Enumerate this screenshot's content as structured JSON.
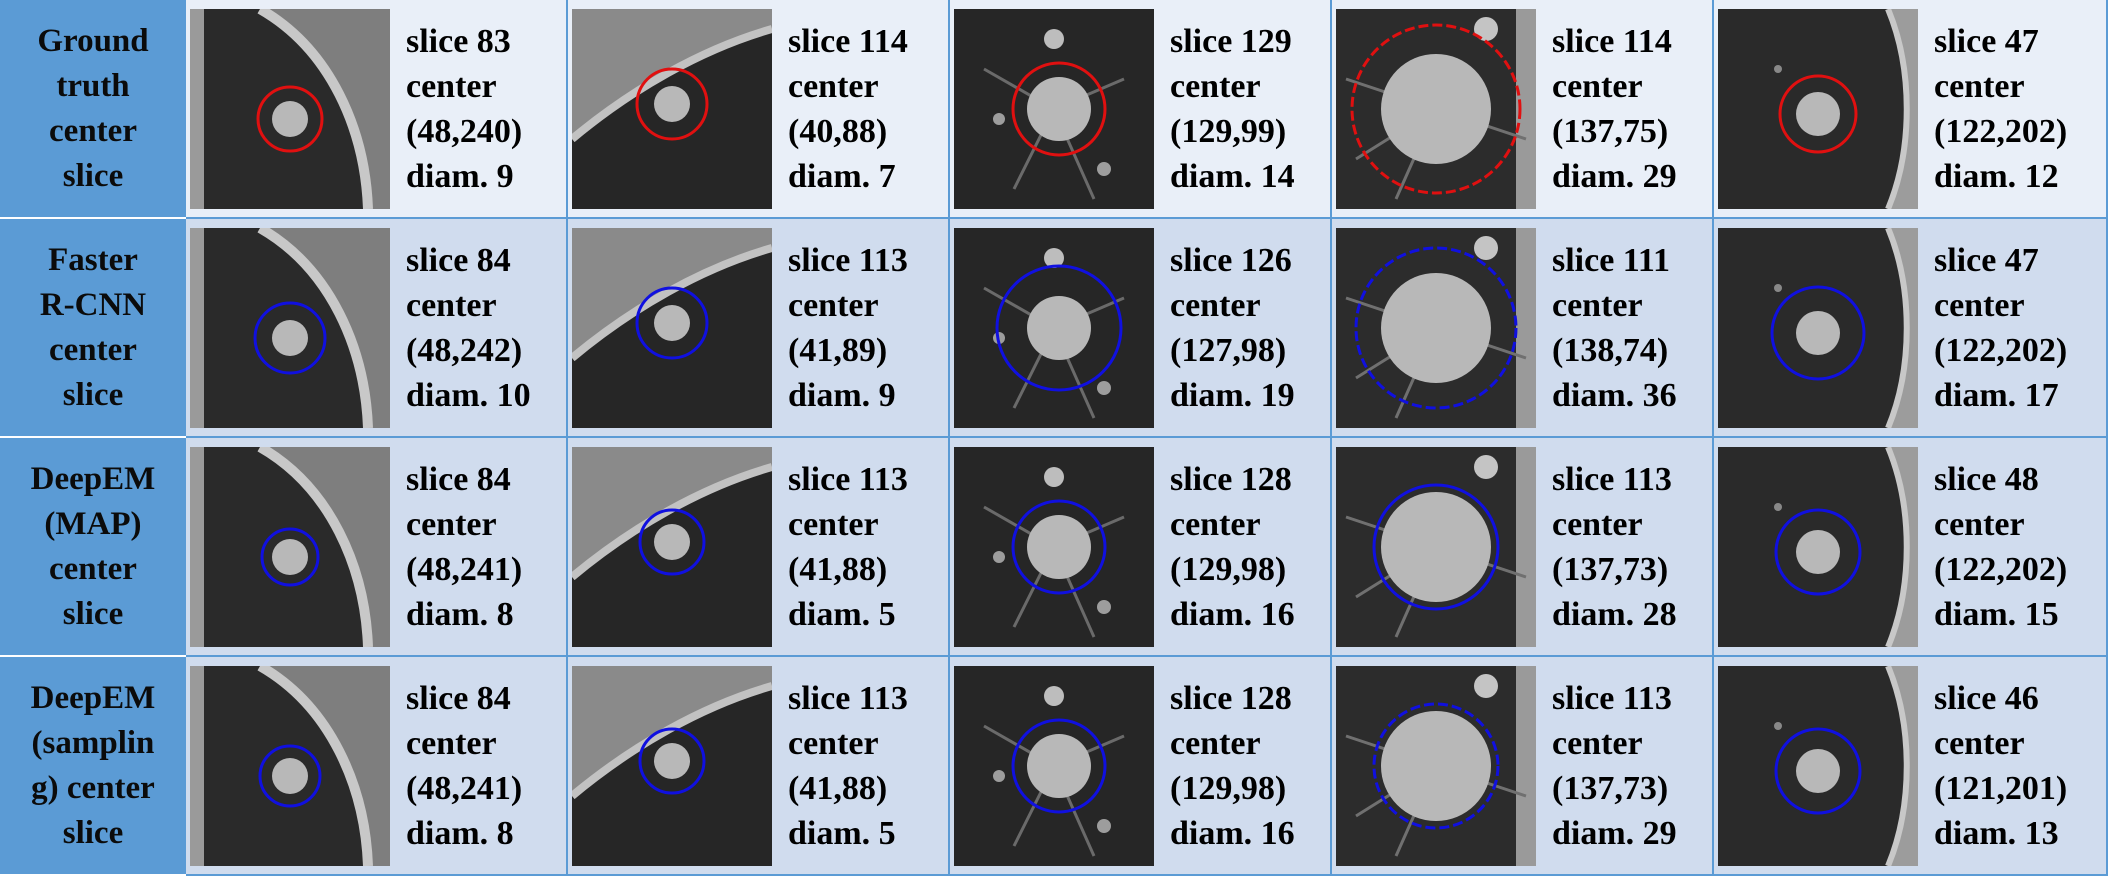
{
  "rows": [
    {
      "label": "Ground\ntruth\ncenter\nslice",
      "circle_color": "#e01010",
      "circle_style": "solid",
      "cells": [
        {
          "slice": "slice 83",
          "center_label": "center",
          "center": "(48,240)",
          "diam": "diam. 9"
        },
        {
          "slice": "slice 114",
          "center_label": "center",
          "center": "(40,88)",
          "diam": "diam. 7"
        },
        {
          "slice": "slice 129",
          "center_label": "center",
          "center": "(129,99)",
          "diam": "diam. 14"
        },
        {
          "slice": "slice 114",
          "center_label": "center",
          "center": "(137,75)",
          "diam": "diam. 29"
        },
        {
          "slice": "slice 47",
          "center_label": "center",
          "center": "(122,202)",
          "diam": "diam. 12"
        }
      ]
    },
    {
      "label": "Faster\nR-CNN\ncenter\nslice",
      "circle_color": "#1010e0",
      "circle_style": "solid",
      "cells": [
        {
          "slice": "slice 84",
          "center_label": "center",
          "center": "(48,242)",
          "diam": "diam. 10"
        },
        {
          "slice": "slice 113",
          "center_label": "center",
          "center": "(41,89)",
          "diam": "diam. 9"
        },
        {
          "slice": "slice 126",
          "center_label": "center",
          "center": "(127,98)",
          "diam": "diam. 19"
        },
        {
          "slice": "slice 111",
          "center_label": "center",
          "center": "(138,74)",
          "diam": "diam. 36"
        },
        {
          "slice": "slice 47",
          "center_label": "center",
          "center": "(122,202)",
          "diam": "diam. 17"
        }
      ]
    },
    {
      "label": "DeepEM\n(MAP)\ncenter\nslice",
      "circle_color": "#1010e0",
      "circle_style": "solid",
      "cells": [
        {
          "slice": "slice 84",
          "center_label": "center",
          "center": "(48,241)",
          "diam": "diam. 8"
        },
        {
          "slice": "slice 113",
          "center_label": "center",
          "center": "(41,88)",
          "diam": "diam. 5"
        },
        {
          "slice": "slice 128",
          "center_label": "center",
          "center": "(129,98)",
          "diam": "diam. 16"
        },
        {
          "slice": "slice 113",
          "center_label": "center",
          "center": "(137,73)",
          "diam": "diam. 28"
        },
        {
          "slice": "slice 48",
          "center_label": "center",
          "center": "(122,202)",
          "diam": "diam. 15"
        }
      ]
    },
    {
      "label": "DeepEM\n(samplin\ng) center\nslice",
      "circle_color": "#1010e0",
      "circle_style": "solid",
      "cells": [
        {
          "slice": "slice 84",
          "center_label": "center",
          "center": "(48,241)",
          "diam": "diam. 8"
        },
        {
          "slice": "slice 113",
          "center_label": "center",
          "center": "(41,88)",
          "diam": "diam. 5"
        },
        {
          "slice": "slice 128",
          "center_label": "center",
          "center": "(129,98)",
          "diam": "diam. 16"
        },
        {
          "slice": "slice 113",
          "center_label": "center",
          "center": "(137,73)",
          "diam": "diam. 29"
        },
        {
          "slice": "slice 46",
          "center_label": "center",
          "center": "(121,201)",
          "diam": "diam. 13"
        }
      ]
    }
  ],
  "scan_types": [
    "pleural-edge-left",
    "pleural-diagonal",
    "central-vessels",
    "large-mass",
    "pleural-right"
  ]
}
